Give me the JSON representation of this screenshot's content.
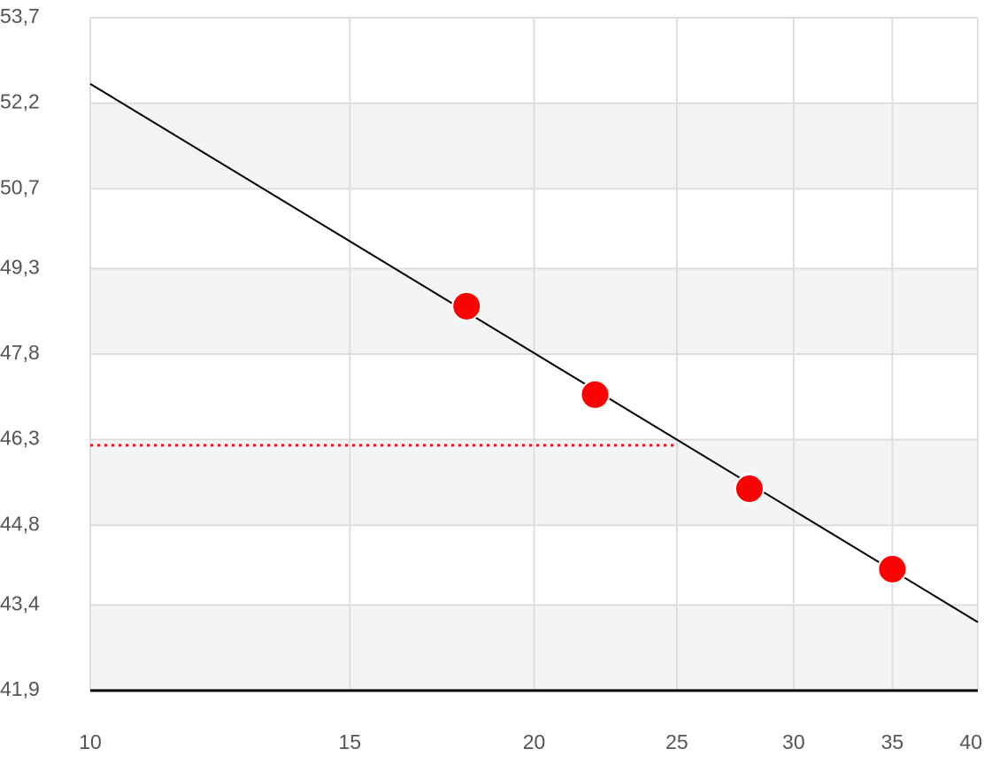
{
  "chart_data": {
    "type": "scatter",
    "xscale": "log",
    "xlim": [
      10,
      40
    ],
    "xticks": [
      10,
      15,
      20,
      25,
      30,
      35,
      40
    ],
    "ylim": [
      41.9,
      53.7
    ],
    "yticks": [
      {
        "value": 41.9,
        "label": "41,9"
      },
      {
        "value": 43.4,
        "label": "43,4"
      },
      {
        "value": 44.8,
        "label": "44,8"
      },
      {
        "value": 46.3,
        "label": "46,3"
      },
      {
        "value": 47.8,
        "label": "47,8"
      },
      {
        "value": 49.3,
        "label": "49,3"
      },
      {
        "value": 50.7,
        "label": "50,7"
      },
      {
        "value": 52.2,
        "label": "52,2"
      },
      {
        "value": 53.7,
        "label": "53,7"
      }
    ],
    "grid": true,
    "bands": true,
    "points": {
      "color": "#ff0000",
      "x": [
        18,
        22,
        28,
        35
      ],
      "values": [
        48.64,
        47.09,
        45.44,
        44.03
      ]
    },
    "lines": [
      {
        "color": "#000000",
        "dash": "solid",
        "x": [
          10,
          40
        ],
        "values": [
          52.54,
          43.1
        ]
      },
      {
        "color": "#e8141b",
        "dash": "dotted",
        "x": [
          10,
          25
        ],
        "values": [
          46.2,
          46.2
        ]
      }
    ]
  }
}
